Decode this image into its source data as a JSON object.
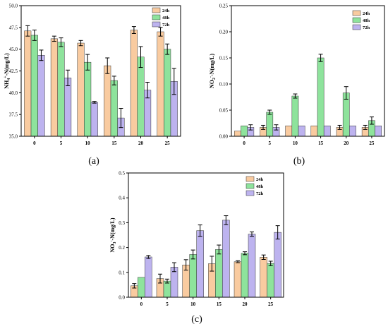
{
  "colors": {
    "24h": "#f9cba0",
    "48h": "#8ee39c",
    "72h": "#bdb3ef"
  },
  "chart_data": [
    {
      "panel_label": "(a)",
      "type": "bar",
      "ylabel": "NH4+-N(mg/L)",
      "ylabel_parts": {
        "base": "NH",
        "sub": "4",
        "sup": "+",
        "tail": "-N(mg/L)"
      },
      "ylim": [
        35.0,
        50.0
      ],
      "yticks": [
        "35.0",
        "37.5",
        "40.0",
        "42.5",
        "45.0",
        "47.5",
        "50.0"
      ],
      "categories": [
        "0",
        "5",
        "10",
        "15",
        "20",
        "25"
      ],
      "legend": "top-right",
      "series": [
        {
          "name": "24h",
          "values": [
            47.1,
            46.2,
            45.7,
            43.1,
            47.2,
            47.0
          ],
          "errors": [
            0.6,
            0.3,
            0.3,
            0.9,
            0.4,
            0.5
          ]
        },
        {
          "name": "48h",
          "values": [
            46.6,
            45.8,
            43.5,
            41.4,
            44.1,
            45.0
          ],
          "errors": [
            0.6,
            0.5,
            0.9,
            0.5,
            1.2,
            0.6
          ]
        },
        {
          "name": "72h",
          "values": [
            44.3,
            41.7,
            38.9,
            37.1,
            40.3,
            41.3
          ],
          "errors": [
            0.6,
            0.9,
            0.1,
            1.1,
            0.9,
            1.5
          ]
        }
      ]
    },
    {
      "panel_label": "(b)",
      "type": "bar",
      "ylabel": "NO2--N(mg/L)",
      "ylabel_parts": {
        "base": "NO",
        "sub": "2",
        "sup": "-",
        "tail": "-N(mg/L)"
      },
      "ylim": [
        0.0,
        0.25
      ],
      "yticks": [
        "0.00",
        "0.05",
        "0.10",
        "0.15",
        "0.20",
        "0.25"
      ],
      "categories": [
        "0",
        "5",
        "10",
        "15",
        "20",
        "25"
      ],
      "legend": "top-right",
      "series": [
        {
          "name": "24h",
          "values": [
            0.01,
            0.017,
            0.02,
            0.02,
            0.017,
            0.017
          ],
          "errors": [
            0,
            0.004,
            0,
            0,
            0.004,
            0.004
          ]
        },
        {
          "name": "48h",
          "values": [
            0.02,
            0.046,
            0.077,
            0.15,
            0.083,
            0.03
          ],
          "errors": [
            0,
            0.004,
            0.004,
            0.007,
            0.012,
            0.007
          ]
        },
        {
          "name": "72h",
          "values": [
            0.017,
            0.017,
            0.02,
            0.02,
            0.02,
            0.02
          ],
          "errors": [
            0.005,
            0.005,
            0,
            0,
            0,
            0
          ]
        }
      ]
    },
    {
      "panel_label": "(c)",
      "type": "bar",
      "ylabel": "NO3--N(mg/L)",
      "ylabel_parts": {
        "base": "NO",
        "sub": "3",
        "sup": "-",
        "tail": "-N(mg/L)"
      },
      "ylim": [
        0.0,
        0.5
      ],
      "yticks": [
        "0.0",
        "0.1",
        "0.2",
        "0.3",
        "0.4",
        "0.5"
      ],
      "categories": [
        "0",
        "5",
        "10",
        "15",
        "20",
        "25"
      ],
      "legend": "top-right",
      "series": [
        {
          "name": "24h",
          "values": [
            0.046,
            0.075,
            0.13,
            0.135,
            0.143,
            0.161
          ],
          "errors": [
            0.009,
            0.018,
            0.021,
            0.03,
            0.004,
            0.009
          ]
        },
        {
          "name": "48h",
          "values": [
            0.08,
            0.065,
            0.172,
            0.192,
            0.177,
            0.136
          ],
          "errors": [
            0,
            0.008,
            0.018,
            0.018,
            0.006,
            0.009
          ]
        },
        {
          "name": "72h",
          "values": [
            0.162,
            0.121,
            0.268,
            0.31,
            0.254,
            0.261
          ],
          "errors": [
            0.006,
            0.018,
            0.023,
            0.018,
            0.009,
            0.027
          ]
        }
      ]
    }
  ]
}
